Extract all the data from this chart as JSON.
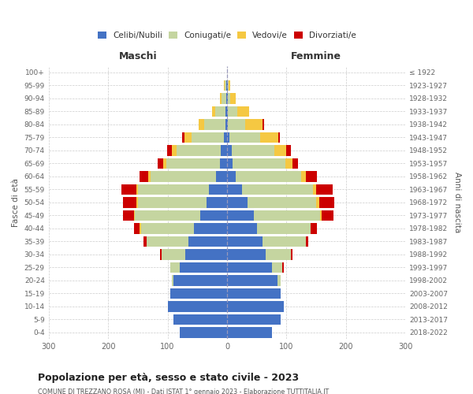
{
  "age_groups_display": [
    "0-4",
    "5-9",
    "10-14",
    "15-19",
    "20-24",
    "25-29",
    "30-34",
    "35-39",
    "40-44",
    "45-49",
    "50-54",
    "55-59",
    "60-64",
    "65-69",
    "70-74",
    "75-79",
    "80-84",
    "85-89",
    "90-94",
    "95-99",
    "100+"
  ],
  "birth_years_display": [
    "2018-2022",
    "2013-2017",
    "2008-2012",
    "2003-2007",
    "1998-2002",
    "1993-1997",
    "1988-1992",
    "1983-1987",
    "1978-1982",
    "1973-1977",
    "1968-1972",
    "1963-1967",
    "1958-1962",
    "1953-1957",
    "1948-1952",
    "1943-1947",
    "1938-1942",
    "1933-1937",
    "1928-1932",
    "1923-1927",
    "≤ 1922"
  ],
  "male_celibi": [
    80,
    90,
    100,
    95,
    90,
    80,
    70,
    65,
    55,
    45,
    35,
    30,
    18,
    12,
    10,
    5,
    3,
    2,
    1,
    1,
    0
  ],
  "male_coniugati": [
    0,
    0,
    0,
    0,
    3,
    15,
    40,
    70,
    90,
    110,
    115,
    120,
    110,
    90,
    75,
    55,
    35,
    18,
    8,
    3,
    0
  ],
  "male_vedovi": [
    0,
    0,
    0,
    0,
    0,
    0,
    0,
    0,
    2,
    2,
    3,
    3,
    4,
    5,
    8,
    12,
    10,
    5,
    3,
    1,
    0
  ],
  "male_divorziati": [
    0,
    0,
    0,
    0,
    0,
    1,
    2,
    5,
    10,
    18,
    22,
    25,
    15,
    10,
    8,
    3,
    0,
    0,
    0,
    0,
    0
  ],
  "female_nubili": [
    75,
    90,
    95,
    90,
    85,
    75,
    65,
    60,
    50,
    45,
    35,
    25,
    15,
    10,
    8,
    4,
    2,
    2,
    1,
    1,
    0
  ],
  "female_coniugate": [
    0,
    0,
    0,
    0,
    5,
    18,
    42,
    72,
    90,
    112,
    115,
    120,
    110,
    88,
    72,
    52,
    28,
    15,
    5,
    2,
    0
  ],
  "female_vedove": [
    0,
    0,
    0,
    0,
    0,
    0,
    0,
    0,
    1,
    2,
    5,
    5,
    8,
    12,
    20,
    30,
    30,
    20,
    8,
    2,
    0
  ],
  "female_divorziate": [
    0,
    0,
    0,
    0,
    0,
    2,
    3,
    5,
    10,
    20,
    25,
    28,
    18,
    10,
    8,
    3,
    2,
    0,
    0,
    0,
    0
  ],
  "colors": {
    "celibi": "#4472c4",
    "coniugati": "#c5d5a0",
    "vedovi": "#f5c842",
    "divorziati": "#cc0000"
  },
  "title": "Popolazione per età, sesso e stato civile - 2023",
  "subtitle": "COMUNE DI TREZZANO ROSA (MI) - Dati ISTAT 1° gennaio 2023 - Elaborazione TUTTITALIA.IT",
  "xlabel_left": "Maschi",
  "xlabel_right": "Femmine",
  "ylabel_left": "Fasce di età",
  "ylabel_right": "Anni di nascita",
  "xlim": 300,
  "legend_labels": [
    "Celibi/Nubili",
    "Coniugati/e",
    "Vedovi/e",
    "Divorziati/e"
  ],
  "background_color": "#ffffff",
  "grid_color": "#cccccc"
}
